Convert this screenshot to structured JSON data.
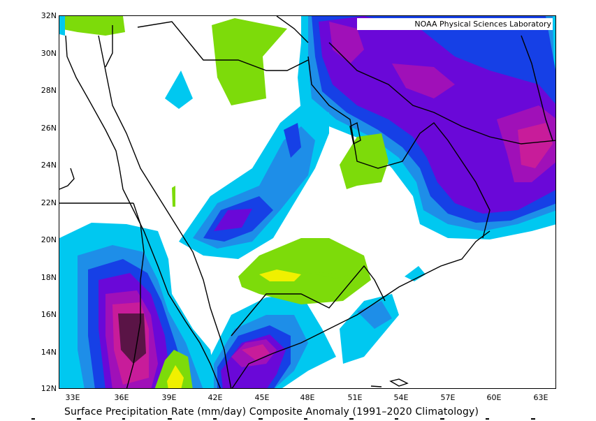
{
  "title": "Surface Precipitation Rate (mm/day) Composite Anomaly (1991–2020 Climatology)",
  "source_credit": "NOAA Physical Sciences Laboratory",
  "lat_labels": [
    "32N",
    "30N",
    "28N",
    "26N",
    "24N",
    "22N",
    "20N",
    "18N",
    "16N",
    "14N",
    "12N"
  ],
  "lon_labels": [
    "33E",
    "36E",
    "39E",
    "42E",
    "45E",
    "48E",
    "51E",
    "54E",
    "57E",
    "60E",
    "63E"
  ],
  "colors": {
    "green": "#7ddb0a",
    "light_blue": "#00c8f0",
    "medium_blue": "#1e8ee8",
    "blue": "#1640e6",
    "purple": "#6a08d8",
    "magenta": "#a010b8",
    "dark_magenta": "#c81c9a",
    "dark_purple": "#5a1446",
    "yellow": "#f0f000",
    "coast": "#000000"
  }
}
